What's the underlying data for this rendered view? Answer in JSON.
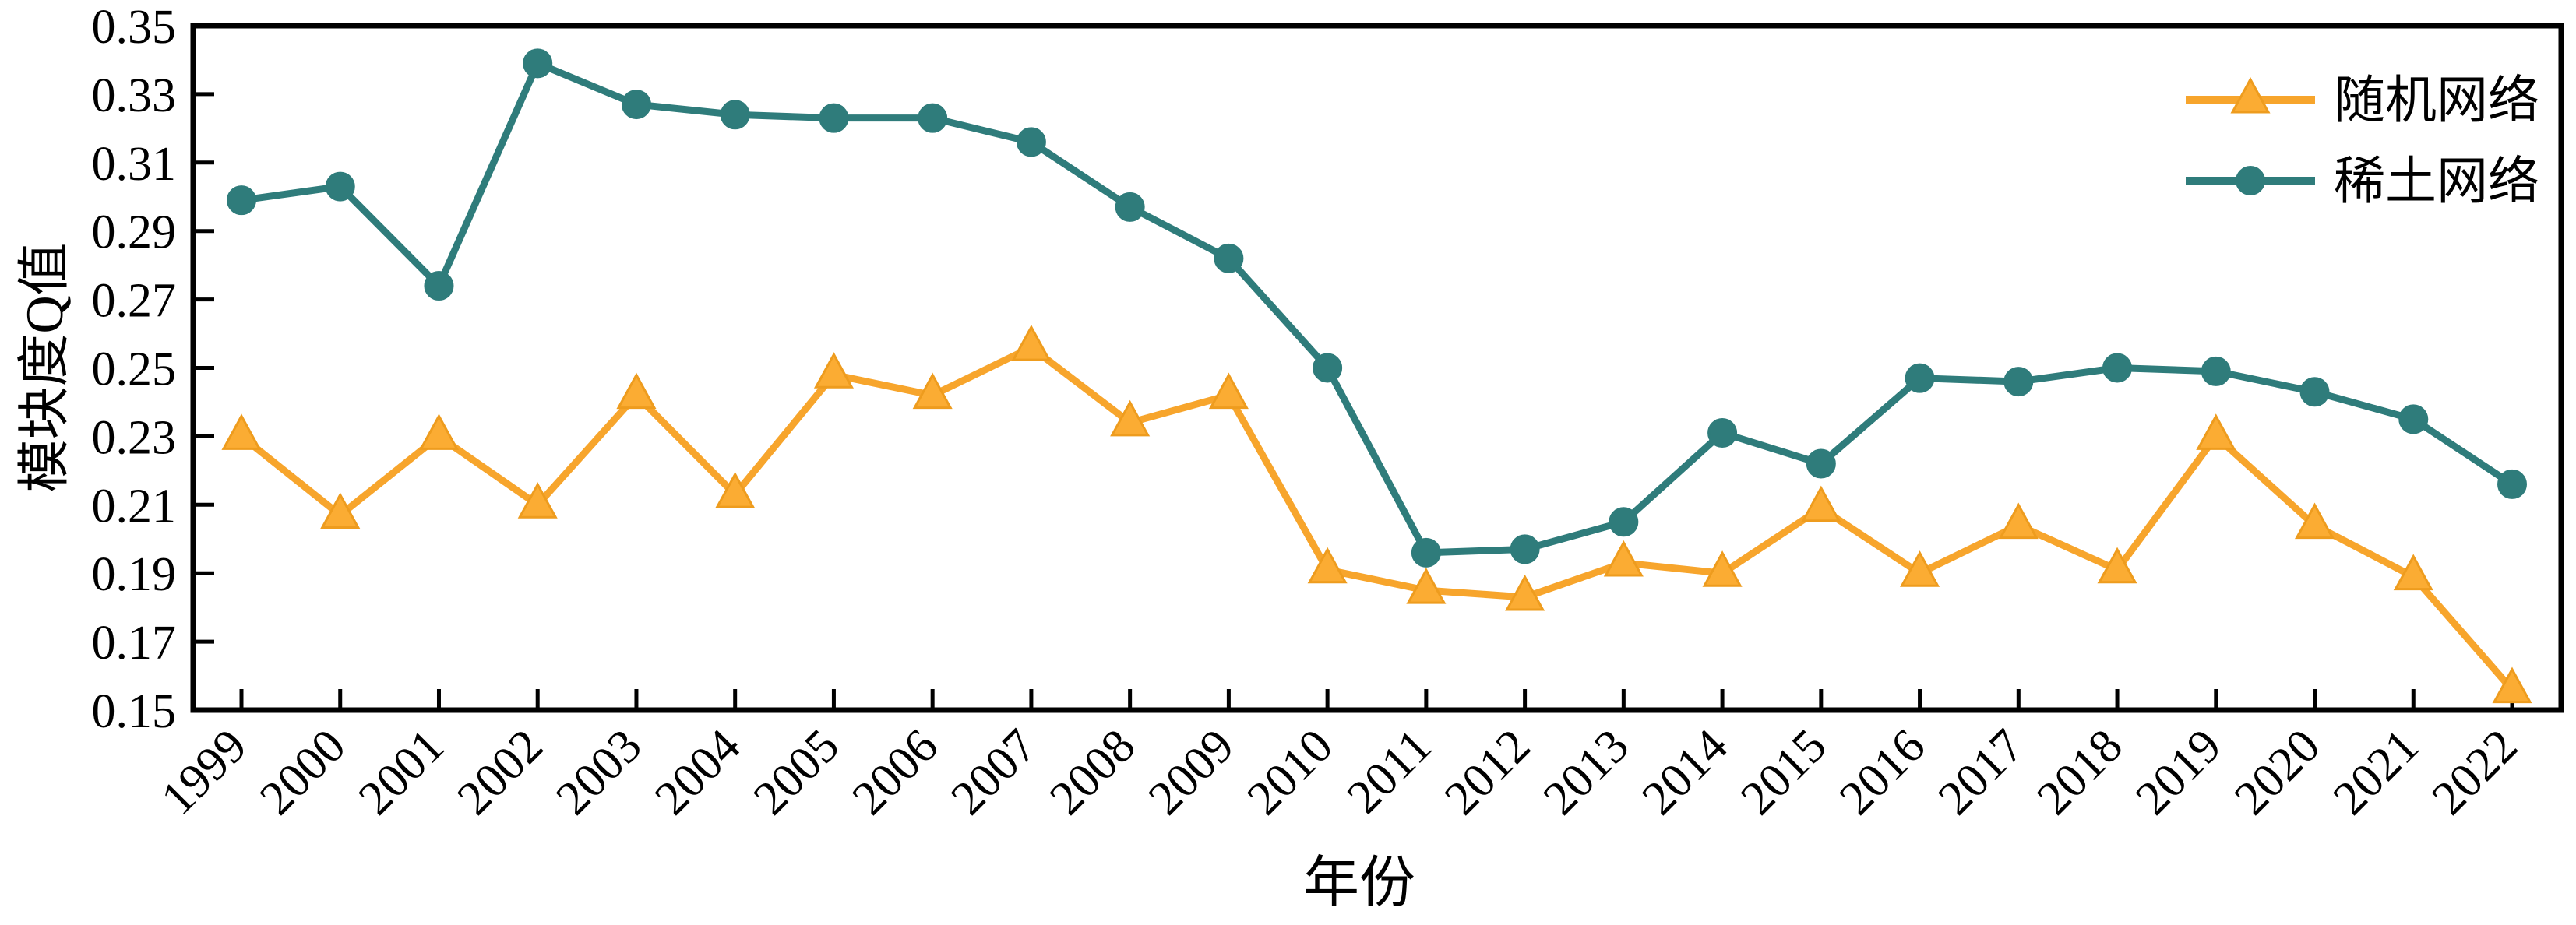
{
  "chart_data": {
    "type": "line",
    "title": "",
    "xlabel": "年份",
    "ylabel": "模块度Q值",
    "x": [
      1999,
      2000,
      2001,
      2002,
      2003,
      2004,
      2005,
      2006,
      2007,
      2008,
      2009,
      2010,
      2011,
      2012,
      2013,
      2014,
      2015,
      2016,
      2017,
      2018,
      2019,
      2020,
      2021,
      2022
    ],
    "ylim": [
      0.15,
      0.35
    ],
    "ytick_step": 0.02,
    "ytick_labels": [
      "0.35",
      "0.33",
      "0.31",
      "0.29",
      "0.27",
      "0.25",
      "0.23",
      "0.21",
      "0.19",
      "0.17",
      "0.15"
    ],
    "grid": false,
    "legend_position": "upper-right",
    "series": [
      {
        "name": "随机网络",
        "marker": "triangle",
        "color": "#F7A52C",
        "marker_fill": "#FBAC33",
        "marker_edge": "#EE9C1E",
        "values": [
          0.23,
          0.207,
          0.23,
          0.21,
          0.242,
          0.213,
          0.248,
          0.242,
          0.256,
          0.234,
          0.242,
          0.191,
          0.185,
          0.183,
          0.193,
          0.19,
          0.209,
          0.19,
          0.204,
          0.191,
          0.23,
          0.204,
          0.189,
          0.156
        ]
      },
      {
        "name": "稀土网络",
        "marker": "circle",
        "color": "#2F7C7B",
        "marker_fill": "#2F7C7B",
        "marker_edge": "#2F7C7B",
        "values": [
          0.299,
          0.303,
          0.274,
          0.339,
          0.327,
          0.324,
          0.323,
          0.323,
          0.316,
          0.297,
          0.282,
          0.25,
          0.196,
          0.197,
          0.205,
          0.231,
          0.222,
          0.247,
          0.246,
          0.25,
          0.249,
          0.243,
          0.235,
          0.216
        ]
      }
    ],
    "axis_color": "#000000",
    "background_color": "#FFFFFF"
  }
}
